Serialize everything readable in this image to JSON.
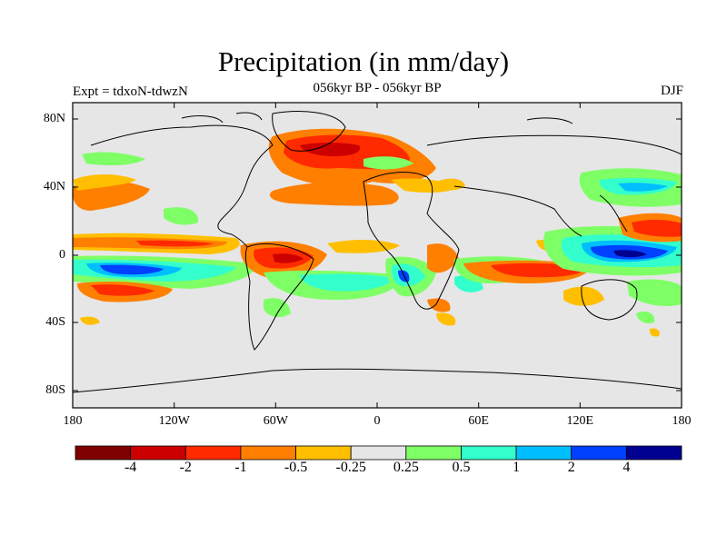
{
  "title": "Precipitation (in mm/day)",
  "subtitle": "056kyr BP - 056kyr BP",
  "experiment": "Expt = tdxoN-tdwzN",
  "season": "DJF",
  "y_ticks": [
    "80N",
    "40N",
    "0",
    "40S",
    "80S"
  ],
  "x_ticks": [
    "180",
    "120W",
    "60W",
    "0",
    "60E",
    "120E",
    "180"
  ],
  "colorbar": {
    "labels": [
      "-4",
      "-2",
      "-1",
      "-0.5",
      "-0.25",
      "0.25",
      "0.5",
      "1",
      "2",
      "4"
    ],
    "colors": [
      "#7f0000",
      "#cc0000",
      "#ff2a00",
      "#ff7f00",
      "#ffbf00",
      "#e6e6e6",
      "#7fff66",
      "#33ffcc",
      "#00bfff",
      "#0040ff",
      "#000090"
    ]
  },
  "background_color": "#e6e6e6"
}
